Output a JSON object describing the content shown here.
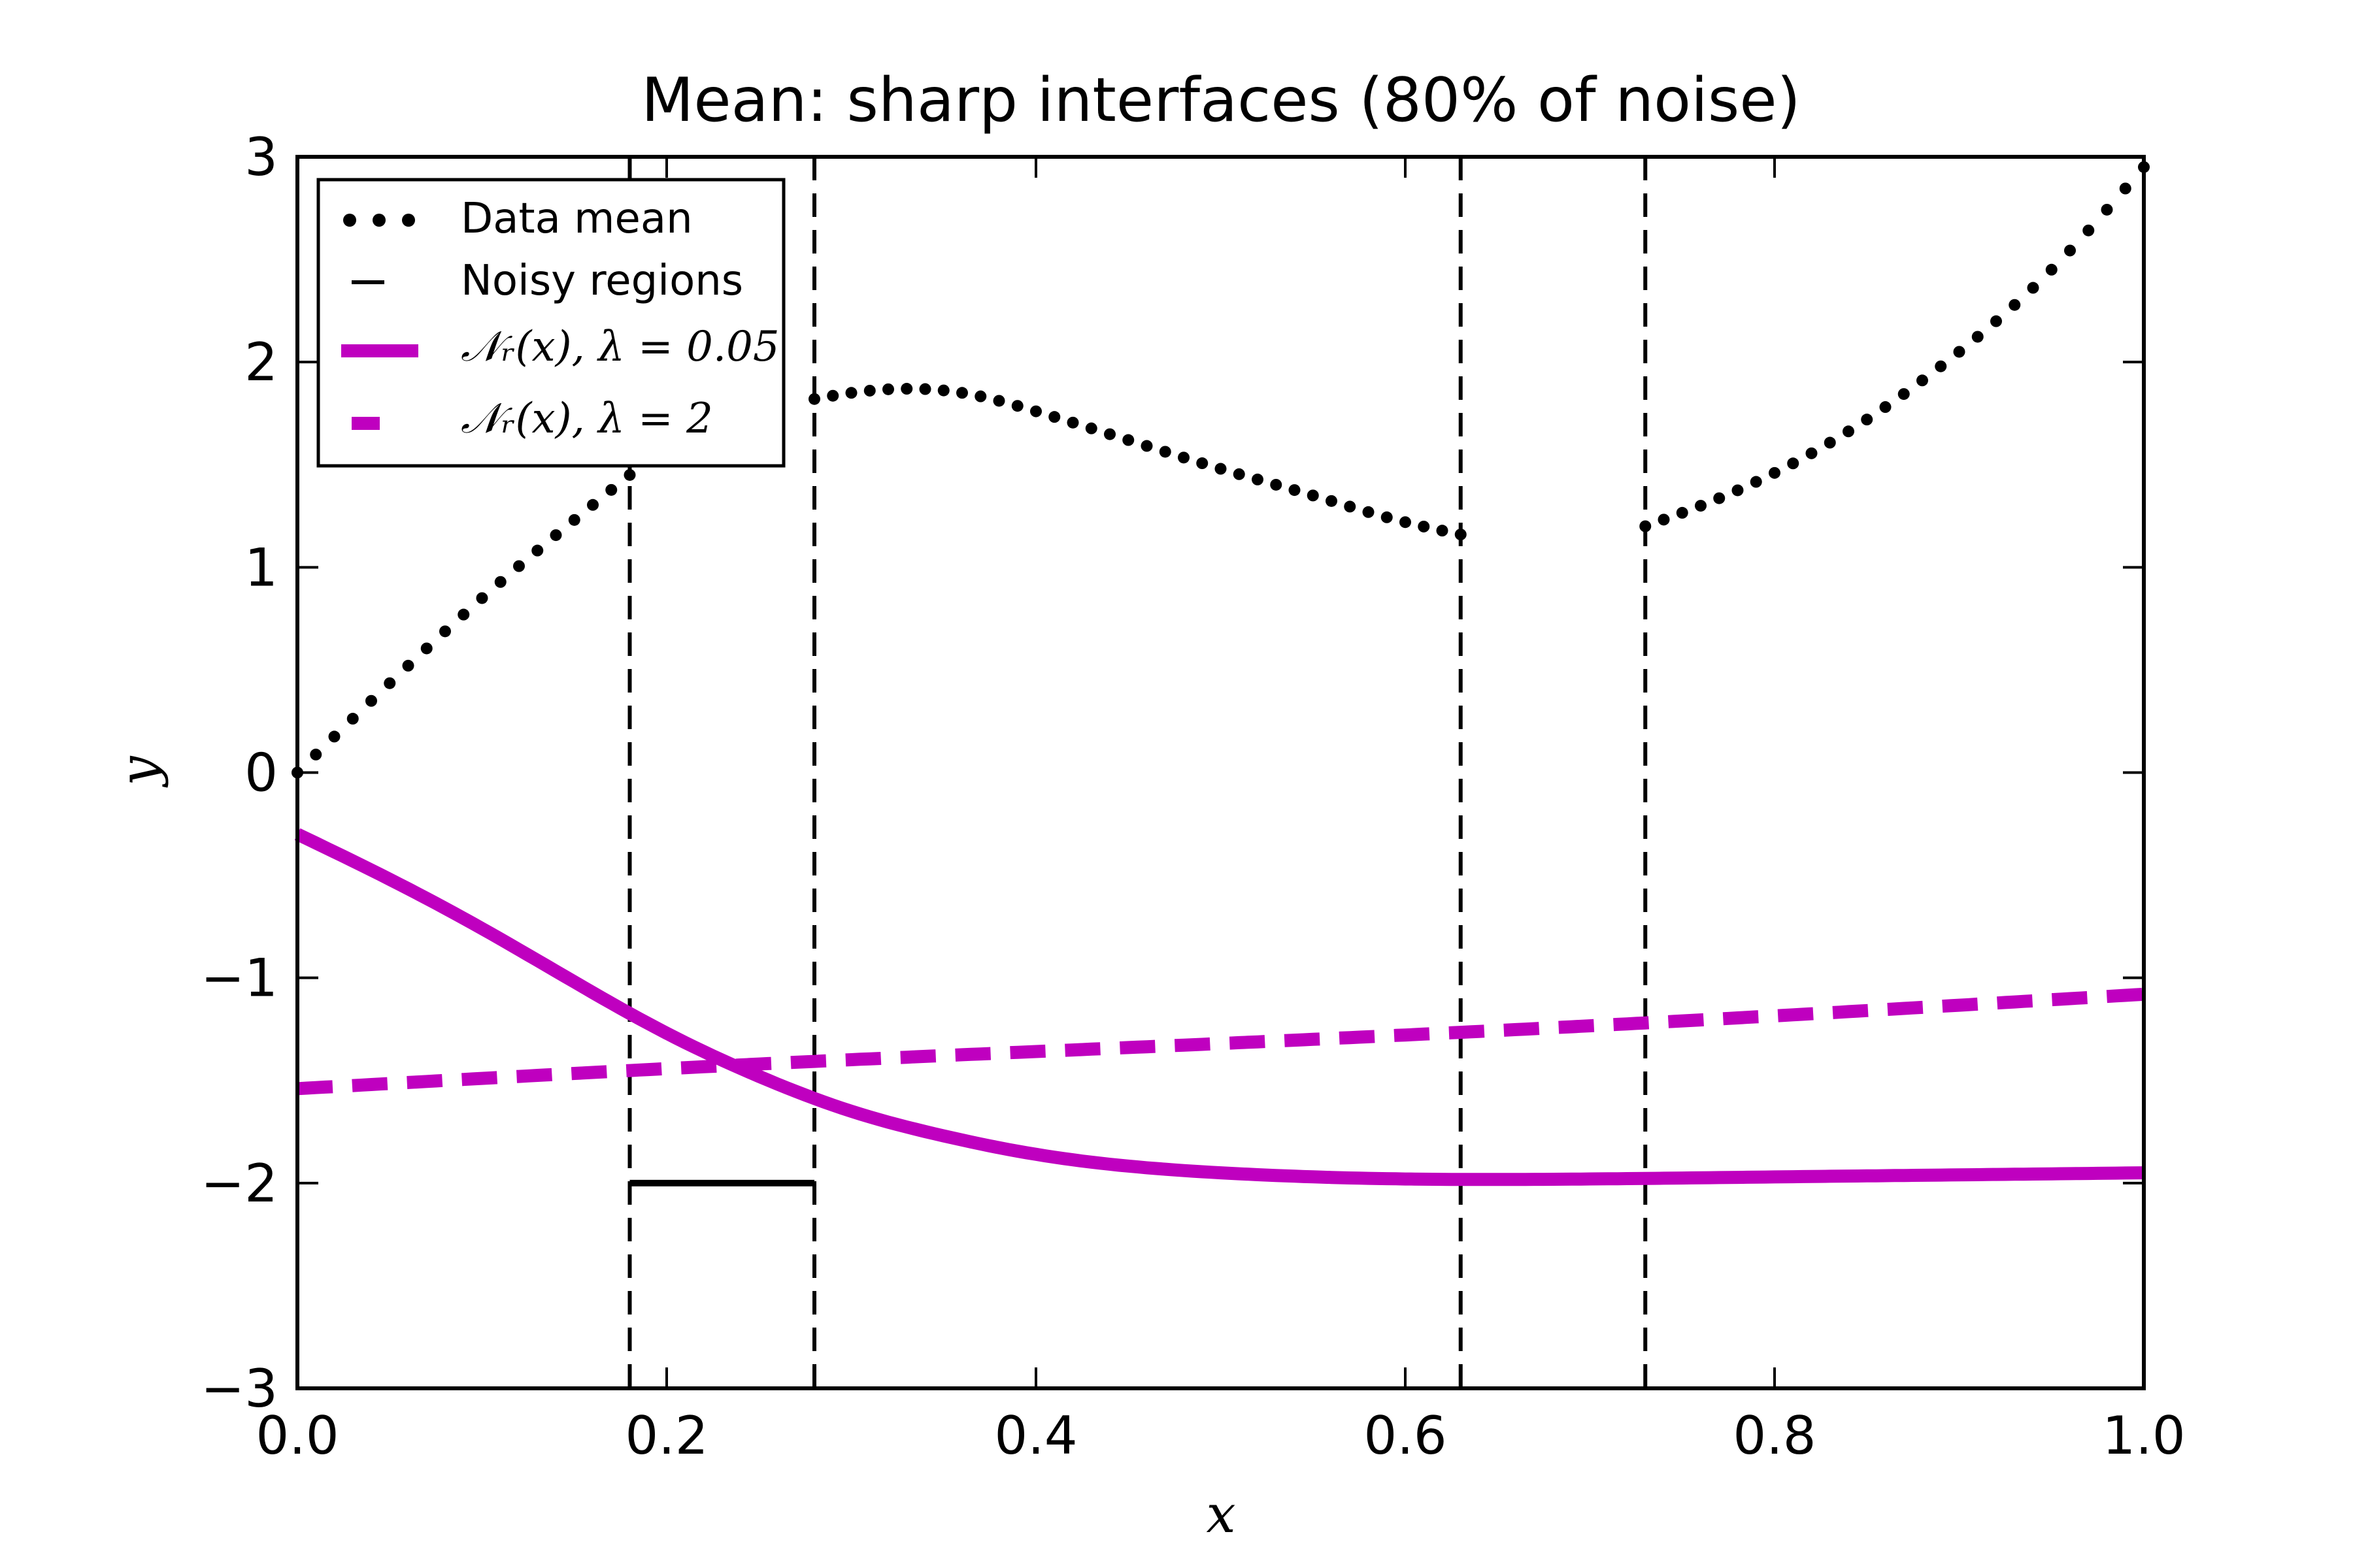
{
  "chart_data": {
    "type": "line",
    "title": "Mean: sharp interfaces (80% of noise)",
    "xlabel": "x",
    "ylabel": "y",
    "xlim": [
      0.0,
      1.0
    ],
    "ylim": [
      -3,
      3
    ],
    "grid": false,
    "legend_position": "top-left",
    "x_ticks": [
      {
        "value": 0.0,
        "label": "0.0"
      },
      {
        "value": 0.2,
        "label": "0.2"
      },
      {
        "value": 0.4,
        "label": "0.4"
      },
      {
        "value": 0.6,
        "label": "0.6"
      },
      {
        "value": 0.8,
        "label": "0.8"
      },
      {
        "value": 1.0,
        "label": "1.0"
      }
    ],
    "y_ticks": [
      {
        "value": -3,
        "label": "−3"
      },
      {
        "value": -2,
        "label": "−2"
      },
      {
        "value": -1,
        "label": "−1"
      },
      {
        "value": 0,
        "label": "0"
      },
      {
        "value": 1,
        "label": "1"
      },
      {
        "value": 2,
        "label": "2"
      },
      {
        "value": 3,
        "label": "3"
      }
    ],
    "series": [
      {
        "name": "Data mean",
        "style": "dotted",
        "color": "#000000",
        "segments": [
          {
            "x": [
              0.0,
              0.1,
              0.18
            ],
            "y": [
              0.0,
              0.85,
              1.45
            ]
          },
          {
            "x": [
              0.28,
              0.3,
              0.33,
              0.36,
              0.4,
              0.45,
              0.5,
              0.55,
              0.6,
              0.63
            ],
            "y": [
              1.82,
              1.85,
              1.87,
              1.85,
              1.76,
              1.62,
              1.48,
              1.35,
              1.22,
              1.16
            ]
          },
          {
            "x": [
              0.73,
              0.76,
              0.8,
              0.85,
              0.9,
              0.95,
              1.0
            ],
            "y": [
              1.2,
              1.3,
              1.46,
              1.72,
              2.05,
              2.45,
              2.95
            ]
          }
        ]
      },
      {
        "name": "Noisy regions",
        "style": "dashed",
        "color": "#000000",
        "boundaries": [
          0.18,
          0.28,
          0.63,
          0.73
        ],
        "bars": [
          {
            "x": [
              0.18,
              0.28
            ],
            "y": -2.0
          },
          {
            "x": [
              0.63,
              0.73
            ],
            "y": -2.0
          }
        ]
      },
      {
        "name": "𝒩ᵣ(x),  λ = 0.05",
        "style": "solid",
        "color": "#bf00bf",
        "x": [
          0.0,
          0.05,
          0.1,
          0.15,
          0.2,
          0.25,
          0.3,
          0.35,
          0.4,
          0.5,
          0.6,
          0.7,
          0.8,
          0.9,
          1.0
        ],
        "y": [
          -0.3,
          -0.52,
          -0.76,
          -1.02,
          -1.27,
          -1.48,
          -1.65,
          -1.77,
          -1.86,
          -1.95,
          -1.98,
          -1.98,
          -1.97,
          -1.96,
          -1.95
        ]
      },
      {
        "name": "𝒩ᵣ(x),  λ = 2",
        "style": "dashed",
        "color": "#bf00bf",
        "x": [
          0.0,
          0.25,
          0.5,
          0.75,
          1.0
        ],
        "y": [
          -1.54,
          -1.42,
          -1.32,
          -1.21,
          -1.08
        ]
      }
    ]
  }
}
